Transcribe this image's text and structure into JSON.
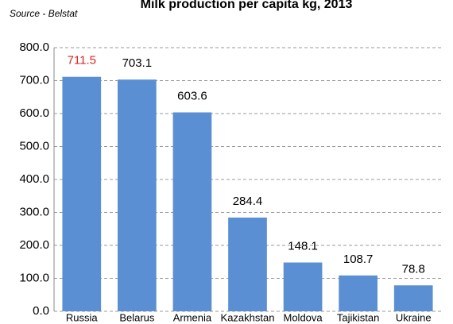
{
  "chart_data": {
    "type": "bar",
    "title": "Milk production per capita kg, 2013",
    "subtitle": "Source - Belstat",
    "categories": [
      "Russia",
      "Belarus",
      "Armenia",
      "Kazakhstan",
      "Moldova",
      "Tajikistan",
      "Ukraine"
    ],
    "values": [
      711.5,
      703.1,
      603.6,
      284.4,
      148.1,
      108.7,
      78.8
    ],
    "value_label_colors": [
      "#e02020",
      "#000000",
      "#000000",
      "#000000",
      "#000000",
      "#000000",
      "#000000"
    ],
    "color": "#5b8fd3",
    "ylim": [
      0,
      800
    ],
    "yticks": [
      {
        "value": 0,
        "label": "0.0"
      },
      {
        "value": 100,
        "label": "100.0"
      },
      {
        "value": 200,
        "label": "200.0"
      },
      {
        "value": 300,
        "label": "300.0"
      },
      {
        "value": 400,
        "label": "400.0"
      },
      {
        "value": 500,
        "label": "500.0"
      },
      {
        "value": 600,
        "label": "600.0"
      },
      {
        "value": 700,
        "label": "700.0"
      },
      {
        "value": 800,
        "label": "800.0"
      }
    ],
    "grid": true
  }
}
